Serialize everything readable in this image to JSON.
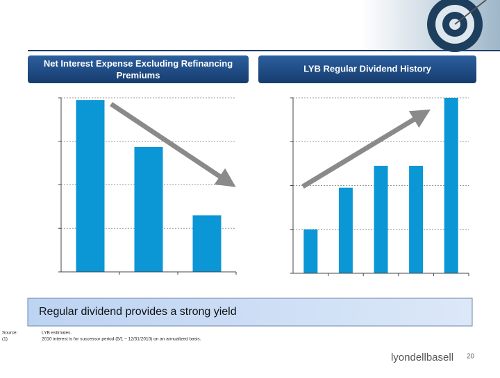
{
  "chart_data": [
    {
      "type": "bar",
      "title": "Net Interest Expense Excluding Refinancing Premiums",
      "categories": [
        null,
        null,
        null
      ],
      "values": [
        3.95,
        2.87,
        1.3
      ],
      "color": "#0b96d6",
      "ylim": [
        0,
        4
      ],
      "yticks": [
        0,
        1,
        2,
        3,
        4
      ],
      "grid": true
    },
    {
      "type": "bar",
      "title": "LYB Regular Dividend History",
      "categories": [
        null,
        null,
        null,
        null,
        null
      ],
      "values": [
        1.0,
        1.95,
        2.45,
        2.45,
        4.0
      ],
      "color": "#0b96d6",
      "ylim": [
        0,
        4
      ],
      "yticks": [
        0,
        1,
        2,
        3,
        4
      ],
      "grid": true
    }
  ],
  "callout": "Regular dividend provides a strong yield",
  "source_label": "Source:",
  "source_text": "LYB estimates.",
  "footnote_label": "(1)",
  "footnote_text": "2010 interest is for successor period (5/1 – 12/31/2010) on an annualized basis.",
  "logo": "lyondellbasell",
  "page_number": "20"
}
